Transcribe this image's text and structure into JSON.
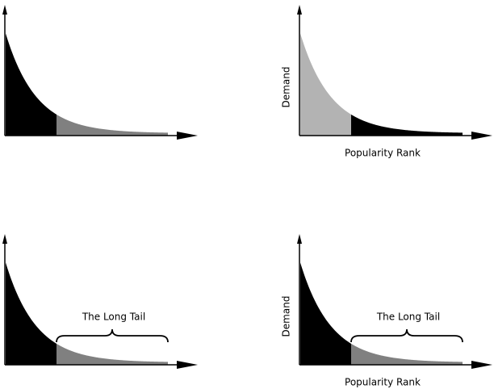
{
  "panels": [
    {},
    {
      "y_label": "Demand",
      "x_label": "Popularity Rank"
    },
    {
      "annotation": "The Long Tail"
    },
    {
      "y_label": "Demand",
      "x_label": "Popularity Rank",
      "annotation": "The Long Tail"
    }
  ]
}
